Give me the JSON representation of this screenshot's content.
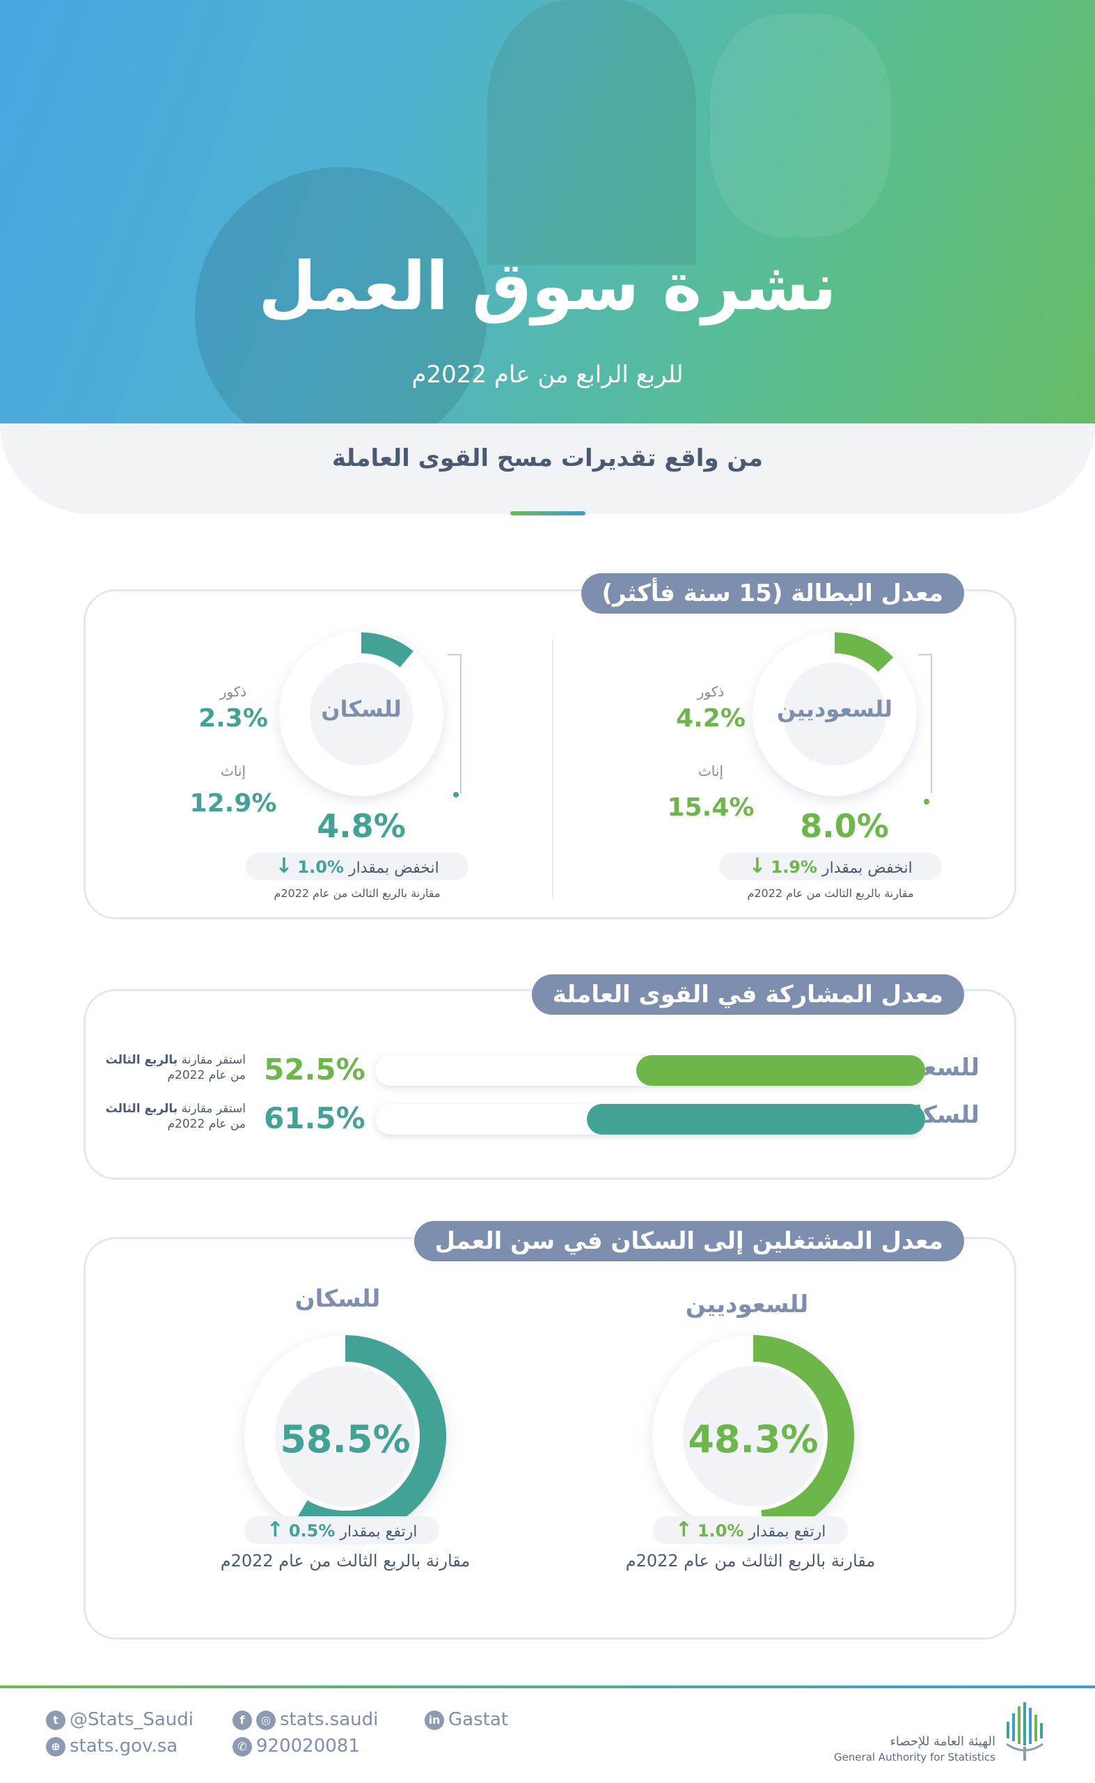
{
  "header": {
    "title": "نشرة سوق العمل",
    "subtitle": "للربع الرابع من عام 2022م",
    "source_line": "من واقع تقديرات مسح القوى العاملة"
  },
  "unemployment": {
    "title": "معدل البطالة (15 سنة فأكثر)",
    "saudis": {
      "label": "للسعوديين",
      "value": "8.0%",
      "ring_fraction": 0.08,
      "males_label": "ذكور",
      "males_value": "4.2%",
      "females_label": "إناث",
      "females_value": "15.4%",
      "change_text": "انخفض بمقدار",
      "change_value": "%1.9",
      "change_arrow": "↓",
      "comparison": "مقارنة بالربع الثالث من عام 2022م"
    },
    "population": {
      "label": "للسكان",
      "value": "4.8%",
      "ring_fraction": 0.048,
      "males_label": "ذكور",
      "males_value": "2.3%",
      "females_label": "إناث",
      "females_value": "12.9%",
      "change_text": "انخفض بمقدار",
      "change_value": "%1.0",
      "change_arrow": "↓",
      "comparison": "مقارنة بالربع الثالث من عام 2022م"
    }
  },
  "participation": {
    "title": "معدل المشاركة في القوى العاملة",
    "rows": [
      {
        "label": "للسعوديين",
        "value": "52.5%",
        "fraction": 0.525,
        "note_prefix": "استقر مقارنة",
        "note_bold": "بالربع الثالث",
        "note_line2": "من عام 2022م"
      },
      {
        "label": "للسكان",
        "value": "61.5%",
        "fraction": 0.615,
        "note_prefix": "استقر مقارنة",
        "note_bold": "بالربع الثالث",
        "note_line2": "من عام 2022م"
      }
    ]
  },
  "employment_ratio": {
    "title": "معدل المشتغلين إلى السكان في سن العمل",
    "saudis": {
      "label": "للسعوديين",
      "value": "48.3%",
      "fraction": 0.483,
      "change_text": "ارتفع بمقدار",
      "change_value": "%1.0",
      "change_arrow": "↑",
      "comparison": "مقارنة بالربع الثالث من عام 2022م"
    },
    "population": {
      "label": "للسكان",
      "value": "58.5%",
      "fraction": 0.585,
      "change_text": "ارتفع بمقدار",
      "change_value": "%0.5",
      "change_arrow": "↑",
      "comparison": "مقارنة بالربع الثالث من عام 2022م"
    }
  },
  "footer": {
    "twitter": "@Stats_Saudi",
    "website": "stats.gov.sa",
    "social": "stats.saudi",
    "phone": "920020081",
    "linkedin": "Gastat",
    "org_ar": "الهيئة العامة للإحصاء",
    "org_en": "General Authority for Statistics",
    "icons": [
      "twitter-icon",
      "globe-icon",
      "facebook-icon",
      "instagram-icon",
      "phone-icon",
      "linkedin-icon"
    ]
  },
  "colors": {
    "green": "#6cb64a",
    "teal": "#42a296",
    "slate": "#7e8eae",
    "hero_start": "#4aa6e2",
    "hero_end": "#67bd66"
  }
}
